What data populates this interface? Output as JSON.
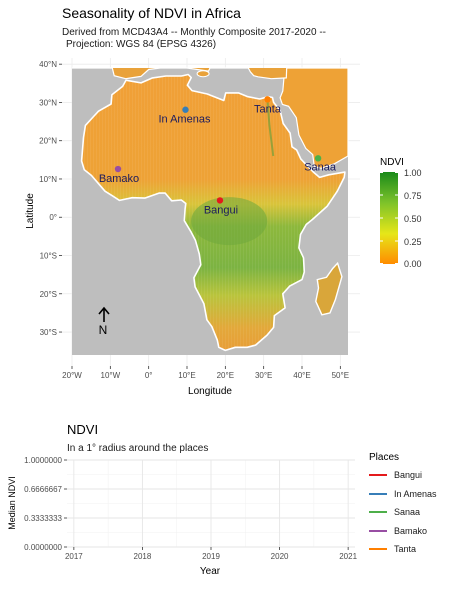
{
  "map": {
    "title": "Seasonality of NDVI in Africa",
    "subtitle_line1": "Derived from MCD43A4 -- Monthly Composite 2017-2020 --",
    "subtitle_line2": "Projection: WGS 84 (EPSG 4326)",
    "x_axis_label": "Longitude",
    "y_axis_label": "Latitude",
    "x_ticks": [
      {
        "value": -20,
        "label": "20°W"
      },
      {
        "value": -10,
        "label": "10°W"
      },
      {
        "value": 0,
        "label": "0°"
      },
      {
        "value": 10,
        "label": "10°E"
      },
      {
        "value": 20,
        "label": "20°E"
      },
      {
        "value": 30,
        "label": "30°E"
      },
      {
        "value": 40,
        "label": "40°E"
      },
      {
        "value": 50,
        "label": "50°E"
      }
    ],
    "y_ticks": [
      {
        "value": 40,
        "label": "40°N"
      },
      {
        "value": 30,
        "label": "30°N"
      },
      {
        "value": 20,
        "label": "20°N"
      },
      {
        "value": 10,
        "label": "10°N"
      },
      {
        "value": 0,
        "label": "0°"
      },
      {
        "value": -10,
        "label": "10°S"
      },
      {
        "value": -20,
        "label": "20°S"
      },
      {
        "value": -30,
        "label": "30°S"
      }
    ],
    "lon_range": [
      -20,
      52
    ],
    "lat_range": [
      -36,
      39
    ],
    "north_arrow_label": "N",
    "places": [
      {
        "name": "In Amenas",
        "lon": 9.6,
        "lat": 28.1,
        "color": "#377EB8"
      },
      {
        "name": "Tanta",
        "lon": 31.0,
        "lat": 30.8,
        "color": "#FF7F00"
      },
      {
        "name": "Sanaa",
        "lon": 44.2,
        "lat": 15.4,
        "color": "#4DAF4A"
      },
      {
        "name": "Bamako",
        "lon": -8.0,
        "lat": 12.6,
        "color": "#984EA3"
      },
      {
        "name": "Bangui",
        "lon": 18.6,
        "lat": 4.4,
        "color": "#E41A1C"
      }
    ],
    "colors": {
      "ocean": "#bebebe",
      "desert": "#f29a2e",
      "savanna": "#e8c232",
      "forest": "#7cb342",
      "border": "#ffffff"
    }
  },
  "colorbar": {
    "title": "NDVI",
    "labels": [
      "1.00",
      "0.75",
      "0.50",
      "0.25",
      "0.00"
    ],
    "stops": [
      "#1a8a1a",
      "#7cc22a",
      "#e6e619",
      "#ff8c00"
    ]
  },
  "chart_data": {
    "type": "line",
    "title": "NDVI",
    "subtitle": "In a 1° radius around the places",
    "xlabel": "Year",
    "ylabel": "Median NDVI",
    "x_ticks": [
      "2017",
      "2018",
      "2019",
      "2020",
      "2021"
    ],
    "y_ticks": [
      "0.0000000",
      "0.3333333",
      "0.6666667",
      "1.0000000"
    ],
    "xlim": [
      2016.9,
      2021.1
    ],
    "ylim": [
      0,
      1
    ],
    "grid": true,
    "legend_title": "Places",
    "legend_position": "right",
    "series": [
      {
        "name": "Bangui",
        "color": "#E41A1C",
        "values": []
      },
      {
        "name": "In Amenas",
        "color": "#377EB8",
        "values": []
      },
      {
        "name": "Sanaa",
        "color": "#4DAF4A",
        "values": []
      },
      {
        "name": "Bamako",
        "color": "#984EA3",
        "values": []
      },
      {
        "name": "Tanta",
        "color": "#FF7F00",
        "values": []
      }
    ]
  }
}
